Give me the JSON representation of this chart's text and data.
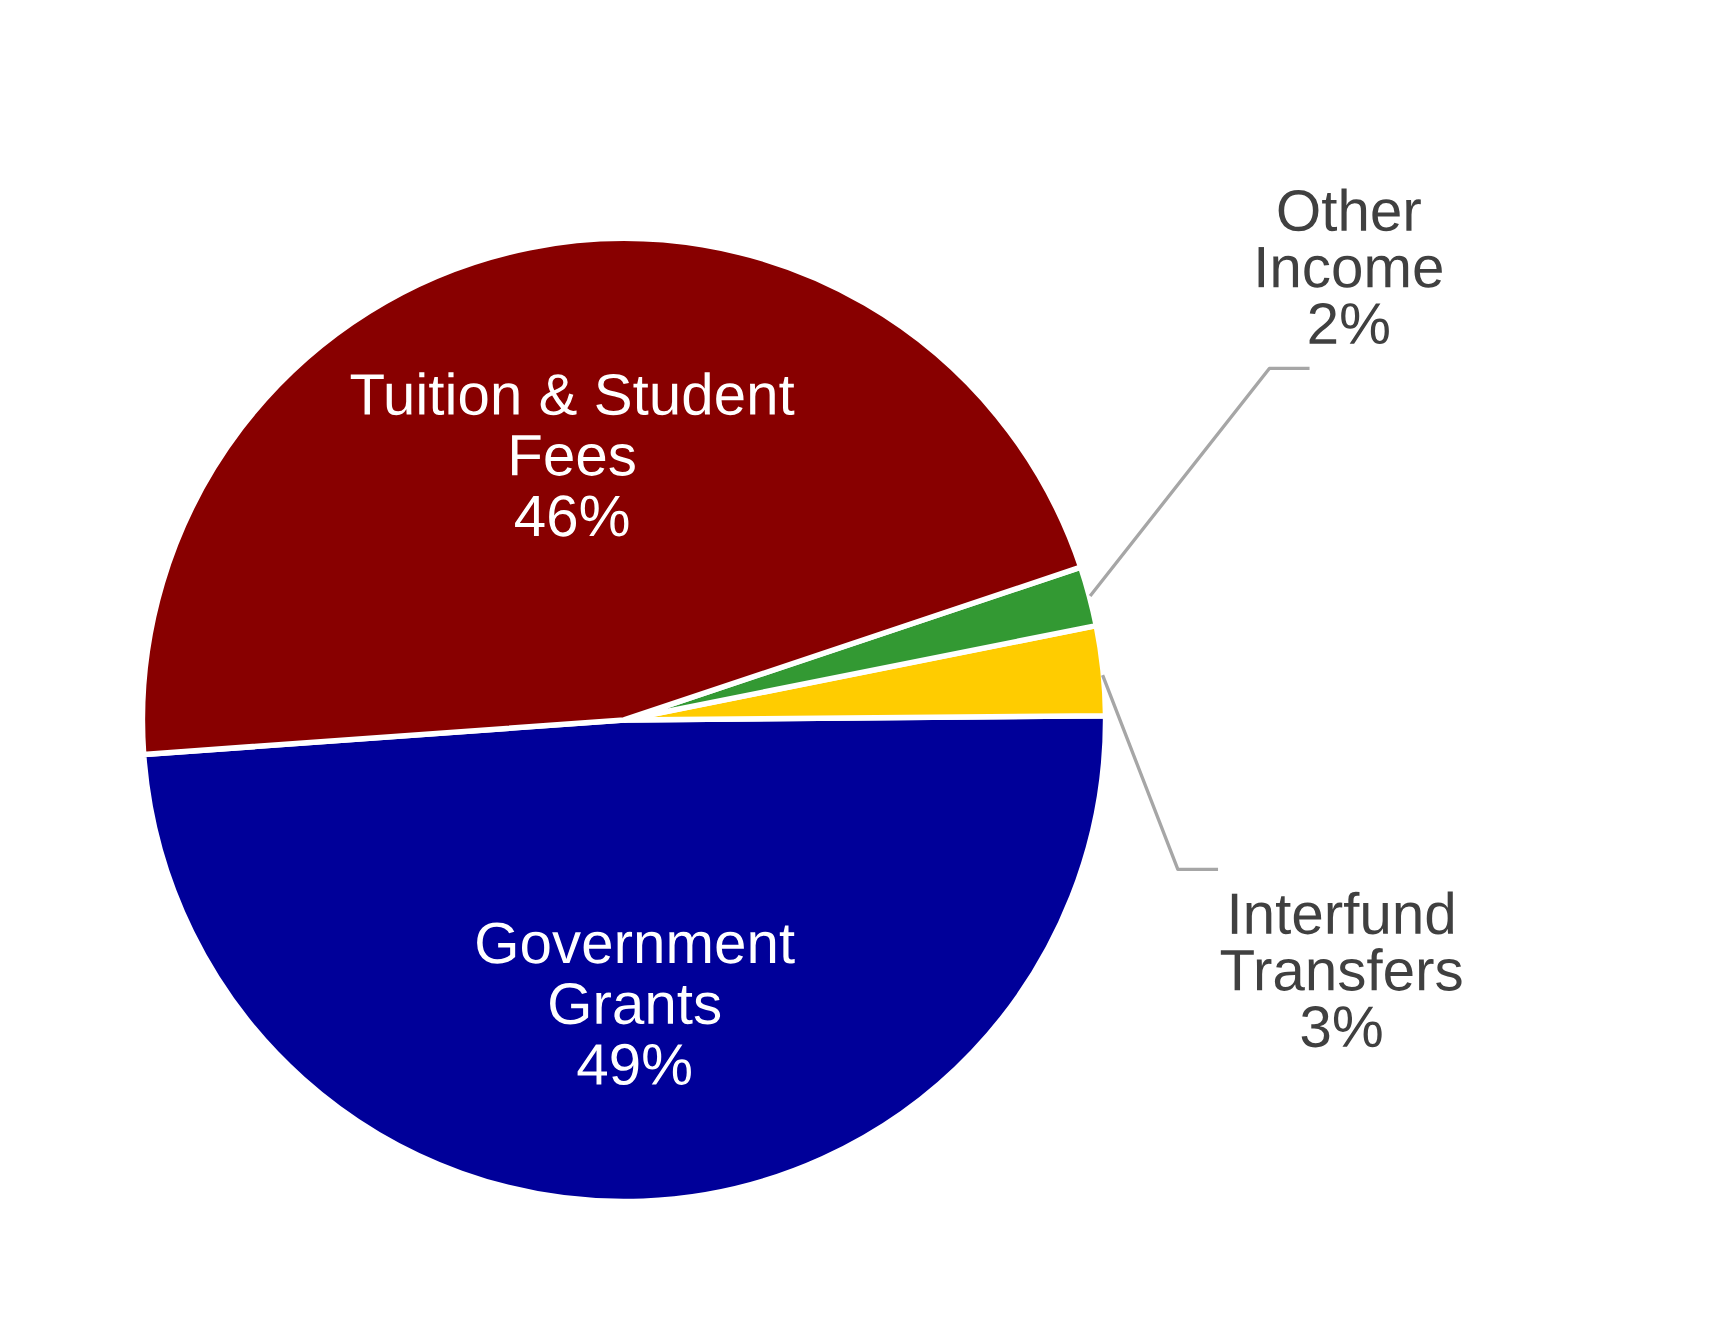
{
  "chart_data": {
    "type": "pie",
    "categories": [
      "Government\nGrants",
      "Interfund\nTransfers",
      "Other\nIncome",
      "Tuition & Student\nFees"
    ],
    "values": [
      49,
      3,
      2,
      46
    ],
    "value_labels": [
      "49%",
      "3%",
      "2%",
      "46%"
    ],
    "colors": [
      "#000099",
      "#ffcc00",
      "#339933",
      "#880000"
    ],
    "legend": false
  }
}
